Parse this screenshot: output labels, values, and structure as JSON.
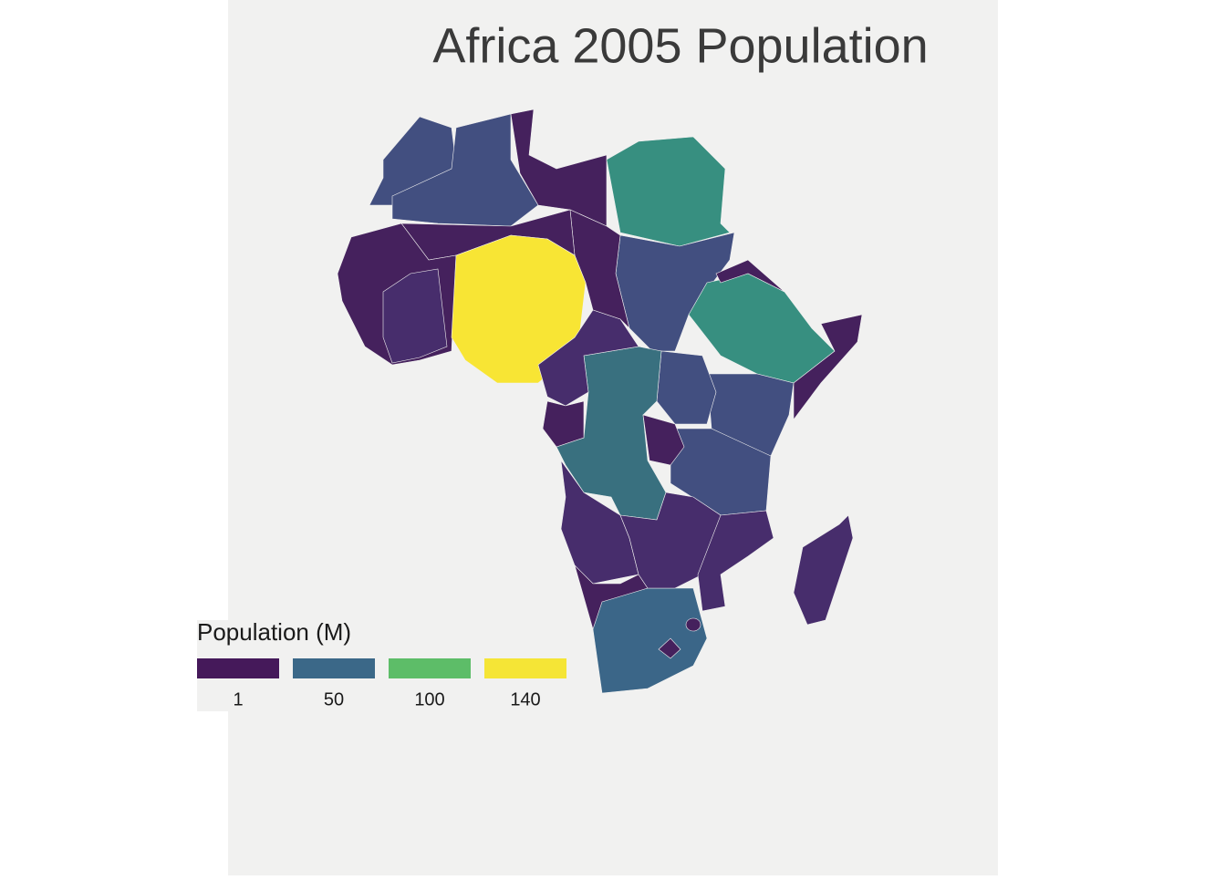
{
  "title": "Africa 2005 Population",
  "legend": {
    "title": "Population (M)",
    "items": [
      {
        "value": 1,
        "color": "#45195a"
      },
      {
        "value": 50,
        "color": "#3b6888"
      },
      {
        "value": 100,
        "color": "#5dbd68"
      },
      {
        "value": 140,
        "color": "#f5e536"
      }
    ]
  }
}
